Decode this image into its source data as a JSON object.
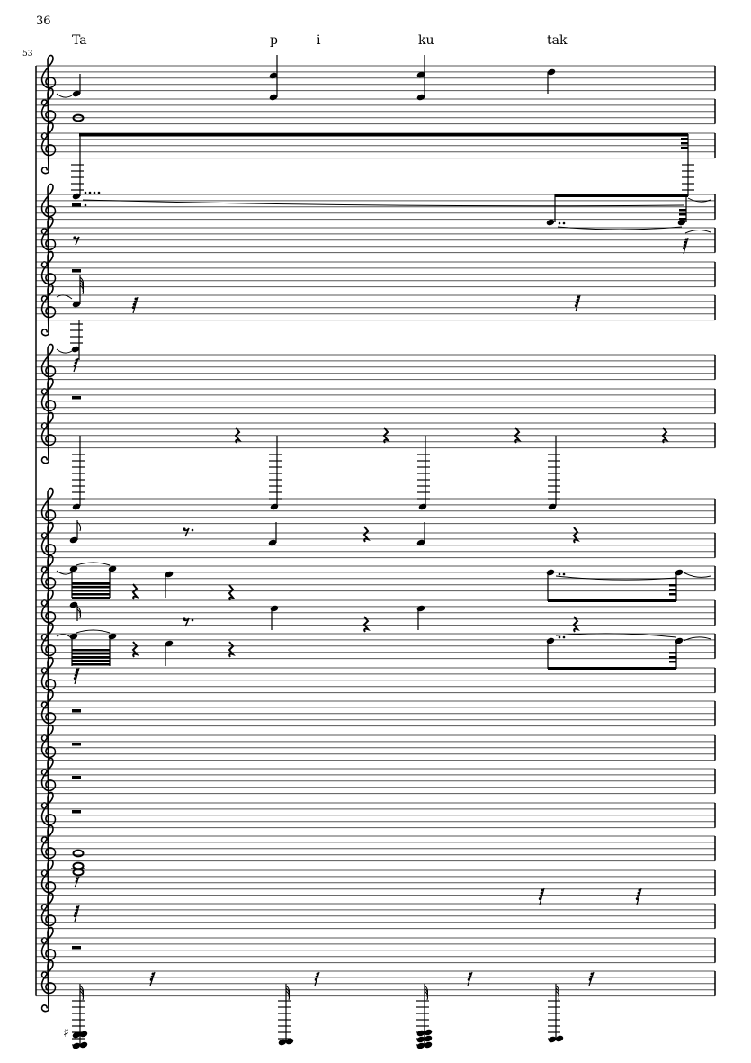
{
  "page": {
    "page_number": "36",
    "measure_number": "53"
  },
  "lyrics": [
    "Ta",
    "p",
    "i",
    "ku",
    "tak"
  ],
  "score": {
    "staff_count": 25,
    "clef": "treble",
    "ink_color": "#000000",
    "staff_line_color": "#555555"
  }
}
